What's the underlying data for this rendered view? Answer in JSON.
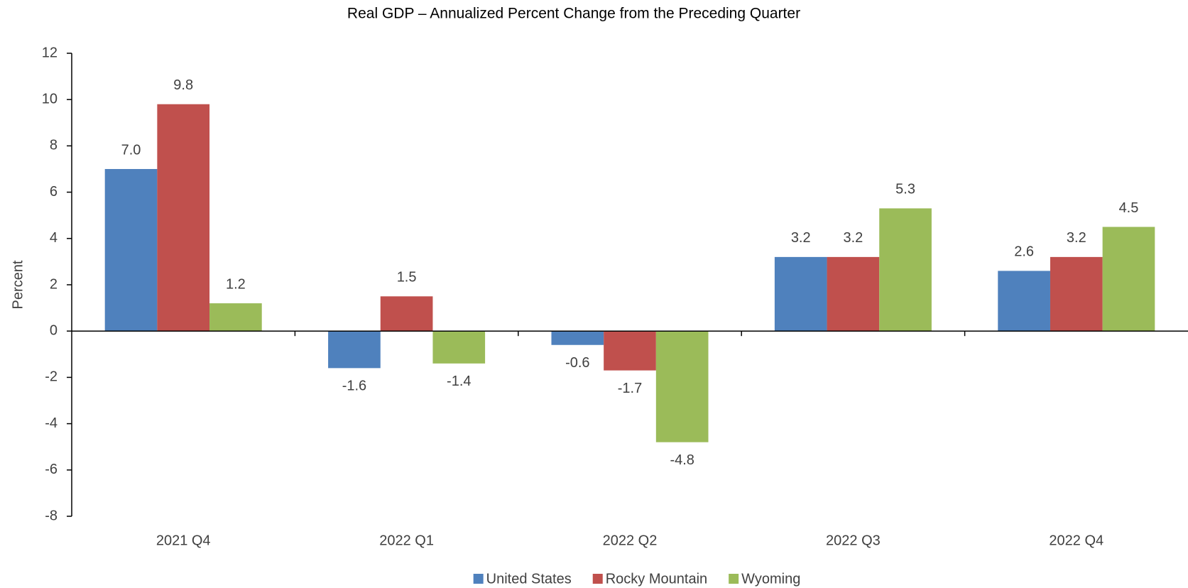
{
  "chart_data": {
    "type": "bar",
    "title": "Real GDP – Annualized Percent Change from the Preceding Quarter",
    "y_label": "Percent",
    "categories": [
      "2021 Q4",
      "2022 Q1",
      "2022 Q2",
      "2022 Q3",
      "2022 Q4"
    ],
    "series": [
      {
        "name": "United States",
        "color": "#4f81bd",
        "values": [
          7.0,
          -1.6,
          -0.6,
          3.2,
          2.6
        ],
        "value_labels": [
          "7.0",
          "-1.6",
          "-0.6",
          "3.2",
          "2.6"
        ]
      },
      {
        "name": "Rocky Mountain",
        "color": "#c0504d",
        "values": [
          9.8,
          1.5,
          -1.7,
          3.2,
          3.2
        ],
        "value_labels": [
          "9.8",
          "1.5",
          "-1.7",
          "3.2",
          "3.2"
        ]
      },
      {
        "name": "Wyoming",
        "color": "#9bbb59",
        "values": [
          1.2,
          -1.4,
          -4.8,
          5.3,
          4.5
        ],
        "value_labels": [
          "1.2",
          "-1.4",
          "-4.8",
          "5.3",
          "4.5"
        ]
      }
    ],
    "ylim": [
      -8,
      12
    ],
    "yticks": [
      -8,
      -6,
      -4,
      -2,
      0,
      2,
      4,
      6,
      8,
      10,
      12
    ],
    "grid": false,
    "legend": "bottom"
  }
}
